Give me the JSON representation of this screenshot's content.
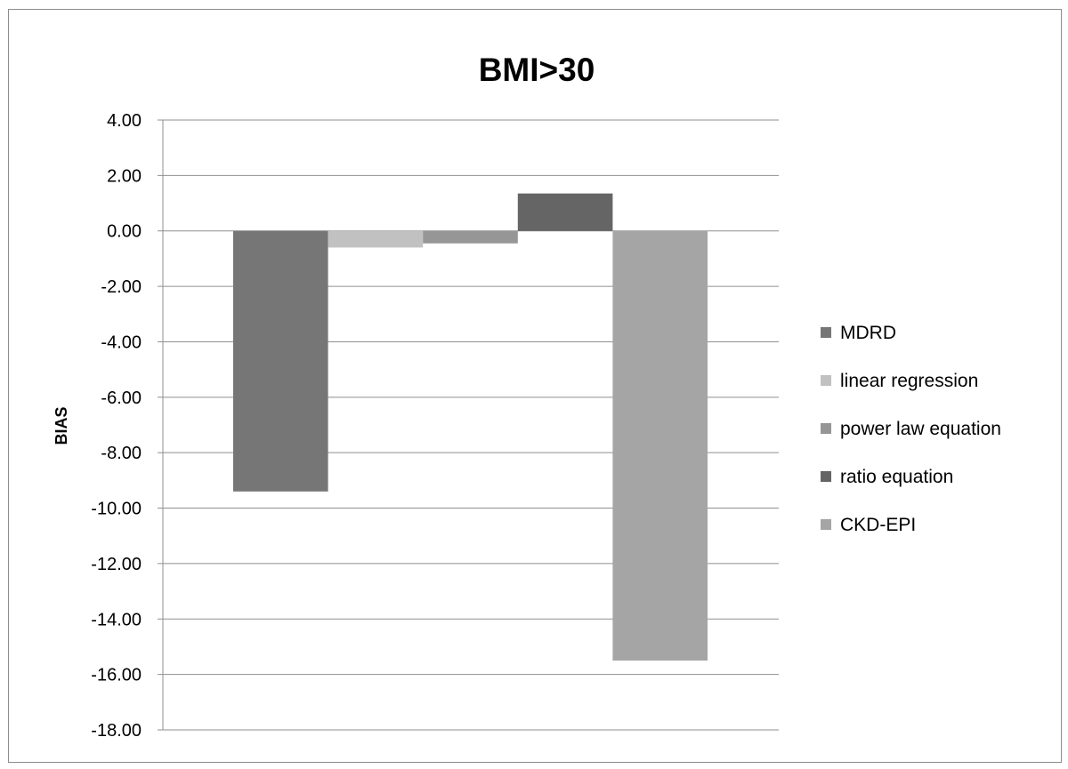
{
  "chart_data": {
    "type": "bar",
    "title": "BMI>30",
    "xlabel": "",
    "ylabel": "BIAS",
    "ylim": [
      -18,
      4
    ],
    "y_tick_step": 2,
    "y_tick_labels": [
      "4.00",
      "2.00",
      "0.00",
      "-2.00",
      "-4.00",
      "-6.00",
      "-8.00",
      "-10.00",
      "-12.00",
      "-14.00",
      "-16.00",
      "-18.00"
    ],
    "categories": [
      ""
    ],
    "grid": true,
    "legend_position": "right",
    "series": [
      {
        "name": "MDRD",
        "values": [
          -9.4
        ],
        "color": "#767676"
      },
      {
        "name": "linear regression",
        "values": [
          -0.6
        ],
        "color": "#c1c1c1"
      },
      {
        "name": "power law equation",
        "values": [
          -0.45
        ],
        "color": "#969696"
      },
      {
        "name": "ratio equation",
        "values": [
          1.35
        ],
        "color": "#656565"
      },
      {
        "name": "CKD-EPI",
        "values": [
          -15.5
        ],
        "color": "#a5a5a5"
      }
    ]
  }
}
